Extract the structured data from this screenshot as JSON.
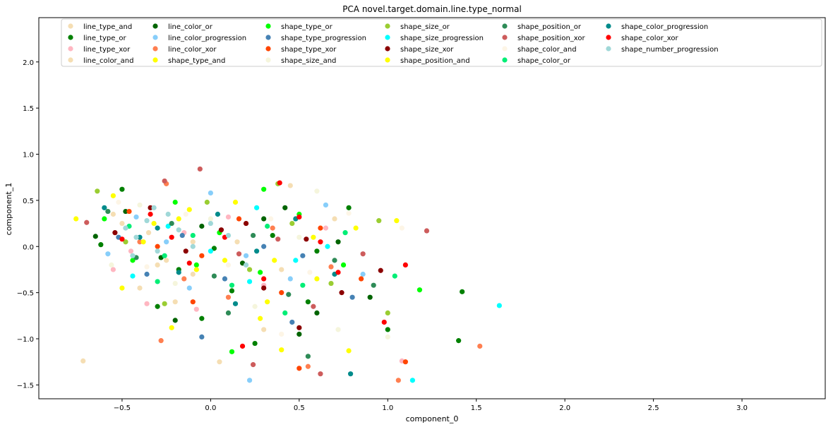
{
  "chart_data": {
    "type": "scatter",
    "title": "PCA novel.target.domain.line.type_normal",
    "xlabel": "component_0",
    "ylabel": "component_1",
    "xlim": [
      -0.97,
      3.47
    ],
    "ylim": [
      -1.65,
      2.48
    ],
    "xticks": [
      -0.5,
      0.0,
      0.5,
      1.0,
      1.5,
      2.0,
      2.5,
      3.0
    ],
    "yticks": [
      -1.5,
      -1.0,
      -0.5,
      0.0,
      0.5,
      1.0,
      1.5,
      2.0
    ],
    "xtick_labels": [
      "−0.5",
      "0.0",
      "0.5",
      "1.0",
      "1.5",
      "2.0",
      "2.5",
      "3.0"
    ],
    "ytick_labels": [
      "−1.5",
      "−1.0",
      "−0.5",
      "0.0",
      "0.5",
      "1.0",
      "1.5",
      "2.0"
    ],
    "grid": false,
    "legend_placement": "top",
    "legend_columns": 7,
    "series": [
      {
        "name": "line_type_and",
        "color": "#f5deb3",
        "points": [
          [
            -0.72,
            -1.24
          ],
          [
            -0.55,
            0.35
          ],
          [
            -0.4,
            -0.45
          ],
          [
            -0.1,
            0.05
          ],
          [
            0.2,
            0.25
          ],
          [
            -0.3,
            -0.2
          ],
          [
            0.45,
            0.66
          ],
          [
            -0.25,
            -0.15
          ]
        ]
      },
      {
        "name": "line_type_or",
        "color": "#008000",
        "points": [
          [
            -0.62,
            0.02
          ],
          [
            -0.5,
            0.62
          ],
          [
            -0.3,
            -0.65
          ],
          [
            0.02,
            -0.02
          ],
          [
            0.35,
            0.12
          ],
          [
            0.55,
            -0.6
          ],
          [
            0.78,
            0.42
          ],
          [
            1.0,
            -0.9
          ],
          [
            1.4,
            -1.02
          ],
          [
            1.42,
            -0.49
          ],
          [
            -0.18,
            -0.25
          ],
          [
            0.12,
            -0.48
          ],
          [
            0.6,
            -0.05
          ],
          [
            0.25,
            -1.05
          ],
          [
            -0.05,
            -0.78
          ]
        ]
      },
      {
        "name": "line_type_xor",
        "color": "#ffb6c1",
        "points": [
          [
            -0.55,
            -0.25
          ],
          [
            -0.45,
            -0.05
          ],
          [
            -0.36,
            -0.62
          ],
          [
            -0.15,
            0.15
          ],
          [
            0.1,
            0.32
          ],
          [
            0.3,
            -0.42
          ],
          [
            -0.08,
            -0.68
          ],
          [
            0.65,
            0.2
          ],
          [
            1.08,
            -1.24
          ]
        ]
      },
      {
        "name": "line_color_and",
        "color": "#f5deb3",
        "points": [
          [
            -0.5,
            0.25
          ],
          [
            -0.35,
            0.15
          ],
          [
            -0.1,
            -0.3
          ],
          [
            0.15,
            0.05
          ],
          [
            0.4,
            -0.25
          ],
          [
            -0.2,
            -0.6
          ],
          [
            0.7,
            0.3
          ],
          [
            0.05,
            -1.25
          ],
          [
            0.3,
            -0.9
          ]
        ]
      },
      {
        "name": "line_color_or",
        "color": "#006400",
        "points": [
          [
            -0.65,
            0.11
          ],
          [
            -0.48,
            0.38
          ],
          [
            -0.28,
            -0.12
          ],
          [
            -0.05,
            0.22
          ],
          [
            0.18,
            -0.18
          ],
          [
            0.42,
            0.42
          ],
          [
            0.6,
            -0.72
          ],
          [
            0.9,
            -0.55
          ],
          [
            -0.2,
            -0.8
          ],
          [
            0.3,
            0.3
          ],
          [
            0.72,
            0.05
          ],
          [
            0.5,
            -0.95
          ]
        ]
      },
      {
        "name": "line_color_progression",
        "color": "#87cefa",
        "points": [
          [
            -0.58,
            -0.08
          ],
          [
            -0.42,
            0.32
          ],
          [
            -0.25,
            0.05
          ],
          [
            0.0,
            0.58
          ],
          [
            0.2,
            -0.1
          ],
          [
            0.45,
            -0.35
          ],
          [
            0.65,
            0.45
          ],
          [
            -0.12,
            -0.45
          ],
          [
            0.22,
            -1.45
          ],
          [
            0.86,
            -0.3
          ]
        ]
      },
      {
        "name": "line_color_xor",
        "color": "#ff7f50",
        "points": [
          [
            -0.4,
            0.05
          ],
          [
            -0.25,
            0.68
          ],
          [
            -0.15,
            -0.35
          ],
          [
            0.1,
            -0.55
          ],
          [
            0.35,
            0.2
          ],
          [
            0.55,
            -1.3
          ],
          [
            1.52,
            -1.08
          ],
          [
            1.06,
            -1.45
          ],
          [
            -0.28,
            -1.02
          ],
          [
            0.68,
            -0.22
          ]
        ]
      },
      {
        "name": "shape_type_and",
        "color": "#ffff00",
        "points": [
          [
            -0.76,
            0.3
          ],
          [
            -0.55,
            0.55
          ],
          [
            -0.38,
            0.05
          ],
          [
            -0.12,
            0.4
          ],
          [
            0.08,
            -0.15
          ],
          [
            0.32,
            -0.6
          ],
          [
            0.58,
            0.1
          ],
          [
            0.78,
            -1.13
          ],
          [
            -0.22,
            -0.88
          ],
          [
            0.4,
            -1.12
          ],
          [
            1.05,
            0.28
          ]
        ]
      },
      {
        "name": "shape_type_or",
        "color": "#00ff00",
        "points": [
          [
            -0.6,
            0.3
          ],
          [
            -0.44,
            -0.15
          ],
          [
            -0.2,
            0.48
          ],
          [
            0.05,
            0.15
          ],
          [
            0.28,
            -0.28
          ],
          [
            0.5,
            0.35
          ],
          [
            0.75,
            -0.2
          ],
          [
            1.18,
            -0.47
          ],
          [
            0.12,
            -1.14
          ],
          [
            0.3,
            0.62
          ],
          [
            -0.08,
            -0.2
          ]
        ]
      },
      {
        "name": "shape_type_progression",
        "color": "#4682b4",
        "points": [
          [
            -0.52,
            0.1
          ],
          [
            -0.36,
            -0.3
          ],
          [
            -0.16,
            0.12
          ],
          [
            0.08,
            -0.35
          ],
          [
            0.3,
            0.0
          ],
          [
            0.52,
            -0.1
          ],
          [
            0.8,
            -0.55
          ],
          [
            -0.05,
            -0.98
          ],
          [
            0.46,
            -0.82
          ]
        ]
      },
      {
        "name": "shape_type_xor",
        "color": "#ff4500",
        "points": [
          [
            -0.46,
            0.38
          ],
          [
            -0.3,
            0.0
          ],
          [
            -0.05,
            -0.1
          ],
          [
            0.16,
            0.3
          ],
          [
            0.4,
            -0.5
          ],
          [
            0.62,
            0.2
          ],
          [
            0.85,
            -0.35
          ],
          [
            1.1,
            -1.25
          ],
          [
            0.5,
            -1.32
          ],
          [
            -0.1,
            -0.6
          ]
        ]
      },
      {
        "name": "shape_size_and",
        "color": "#f5f5dc",
        "points": [
          [
            -0.56,
            -0.2
          ],
          [
            -0.4,
            0.45
          ],
          [
            -0.2,
            -0.4
          ],
          [
            0.0,
            0.3
          ],
          [
            0.25,
            -0.65
          ],
          [
            0.5,
            0.1
          ],
          [
            0.72,
            -0.9
          ],
          [
            1.0,
            -0.98
          ],
          [
            0.6,
            0.6
          ]
        ]
      },
      {
        "name": "shape_size_or",
        "color": "#9acd32",
        "points": [
          [
            -0.64,
            0.6
          ],
          [
            -0.48,
            0.05
          ],
          [
            -0.26,
            -0.62
          ],
          [
            -0.02,
            0.48
          ],
          [
            0.22,
            -0.25
          ],
          [
            0.46,
            0.25
          ],
          [
            0.68,
            -0.4
          ],
          [
            0.95,
            0.28
          ],
          [
            0.38,
            0.68
          ],
          [
            1.0,
            -0.72
          ]
        ]
      },
      {
        "name": "shape_size_progression",
        "color": "#00ffff",
        "points": [
          [
            -0.44,
            -0.32
          ],
          [
            -0.24,
            0.22
          ],
          [
            0.0,
            -0.05
          ],
          [
            0.26,
            0.42
          ],
          [
            0.48,
            -0.15
          ],
          [
            0.66,
            0.0
          ],
          [
            1.14,
            -1.45
          ],
          [
            1.63,
            -0.64
          ],
          [
            0.22,
            -0.38
          ]
        ]
      },
      {
        "name": "shape_size_xor",
        "color": "#8b0000",
        "points": [
          [
            -0.54,
            0.15
          ],
          [
            -0.34,
            0.42
          ],
          [
            -0.14,
            -0.05
          ],
          [
            0.06,
            0.18
          ],
          [
            0.3,
            -0.45
          ],
          [
            0.54,
            0.08
          ],
          [
            0.74,
            -0.5
          ],
          [
            0.96,
            -0.26
          ],
          [
            0.2,
            0.25
          ],
          [
            0.5,
            -0.88
          ]
        ]
      },
      {
        "name": "shape_position_and",
        "color": "#ffff00",
        "points": [
          [
            -0.5,
            -0.45
          ],
          [
            -0.32,
            0.25
          ],
          [
            -0.08,
            -0.25
          ],
          [
            0.14,
            0.48
          ],
          [
            0.36,
            -0.15
          ],
          [
            0.6,
            -0.35
          ],
          [
            0.82,
            0.2
          ],
          [
            0.28,
            -0.78
          ],
          [
            -0.18,
            0.3
          ]
        ]
      },
      {
        "name": "shape_position_or",
        "color": "#2e8b57",
        "points": [
          [
            -0.58,
            0.38
          ],
          [
            -0.42,
            -0.12
          ],
          [
            -0.22,
            0.25
          ],
          [
            0.02,
            -0.32
          ],
          [
            0.24,
            0.12
          ],
          [
            0.44,
            -0.52
          ],
          [
            0.7,
            -0.15
          ],
          [
            0.55,
            -1.19
          ],
          [
            0.1,
            -0.72
          ],
          [
            0.92,
            -0.42
          ]
        ]
      },
      {
        "name": "shape_position_xor",
        "color": "#cd5c5c",
        "points": [
          [
            -0.7,
            0.26
          ],
          [
            -0.26,
            0.71
          ],
          [
            -0.06,
            0.84
          ],
          [
            0.16,
            -0.08
          ],
          [
            0.38,
            0.08
          ],
          [
            0.58,
            -0.65
          ],
          [
            0.86,
            -0.08
          ],
          [
            1.22,
            0.17
          ],
          [
            0.24,
            -1.28
          ],
          [
            0.62,
            -1.38
          ]
        ]
      },
      {
        "name": "shape_color_and",
        "color": "#fdf5e6",
        "points": [
          [
            -0.52,
            0.48
          ],
          [
            -0.36,
            -0.22
          ],
          [
            -0.14,
            0.35
          ],
          [
            0.1,
            -0.2
          ],
          [
            0.34,
            0.3
          ],
          [
            0.56,
            -0.28
          ],
          [
            0.78,
            0.36
          ],
          [
            1.08,
            0.2
          ],
          [
            0.4,
            -0.95
          ]
        ]
      },
      {
        "name": "shape_color_or",
        "color": "#00ee76",
        "points": [
          [
            -0.46,
            0.22
          ],
          [
            -0.3,
            -0.38
          ],
          [
            -0.1,
            0.12
          ],
          [
            0.12,
            -0.42
          ],
          [
            0.32,
            0.22
          ],
          [
            0.52,
            -0.42
          ],
          [
            0.76,
            0.15
          ],
          [
            1.04,
            -0.32
          ],
          [
            -0.26,
            -0.1
          ],
          [
            0.42,
            -0.72
          ]
        ]
      },
      {
        "name": "shape_color_progression",
        "color": "#008b8b",
        "points": [
          [
            -0.6,
            0.42
          ],
          [
            -0.4,
            0.1
          ],
          [
            -0.18,
            -0.28
          ],
          [
            0.04,
            0.35
          ],
          [
            0.26,
            -0.05
          ],
          [
            0.48,
            0.3
          ],
          [
            0.7,
            -0.3
          ],
          [
            0.79,
            -1.38
          ],
          [
            -0.3,
            0.2
          ],
          [
            0.14,
            -0.62
          ]
        ]
      },
      {
        "name": "shape_color_xor",
        "color": "#ff0000",
        "points": [
          [
            -0.5,
            0.08
          ],
          [
            -0.34,
            0.35
          ],
          [
            -0.12,
            -0.18
          ],
          [
            0.08,
            0.1
          ],
          [
            0.3,
            -0.35
          ],
          [
            0.5,
            0.32
          ],
          [
            0.72,
            -0.28
          ],
          [
            0.98,
            -0.82
          ],
          [
            1.1,
            -0.2
          ],
          [
            0.39,
            0.69
          ],
          [
            0.18,
            -1.08
          ],
          [
            -0.22,
            0.1
          ],
          [
            0.62,
            0.05
          ]
        ]
      },
      {
        "name": "shape_number_progression",
        "color": "#a0d8d8",
        "points": [
          [
            -0.48,
            0.2
          ],
          [
            -0.42,
            0.1
          ],
          [
            -0.36,
            0.28
          ],
          [
            -0.3,
            -0.05
          ],
          [
            -0.24,
            0.35
          ],
          [
            -0.18,
            0.18
          ],
          [
            -0.1,
            0.0
          ],
          [
            0.0,
            0.25
          ],
          [
            0.1,
            0.12
          ],
          [
            0.2,
            -0.2
          ],
          [
            -0.44,
            -0.1
          ],
          [
            -0.32,
            0.42
          ]
        ]
      }
    ]
  }
}
